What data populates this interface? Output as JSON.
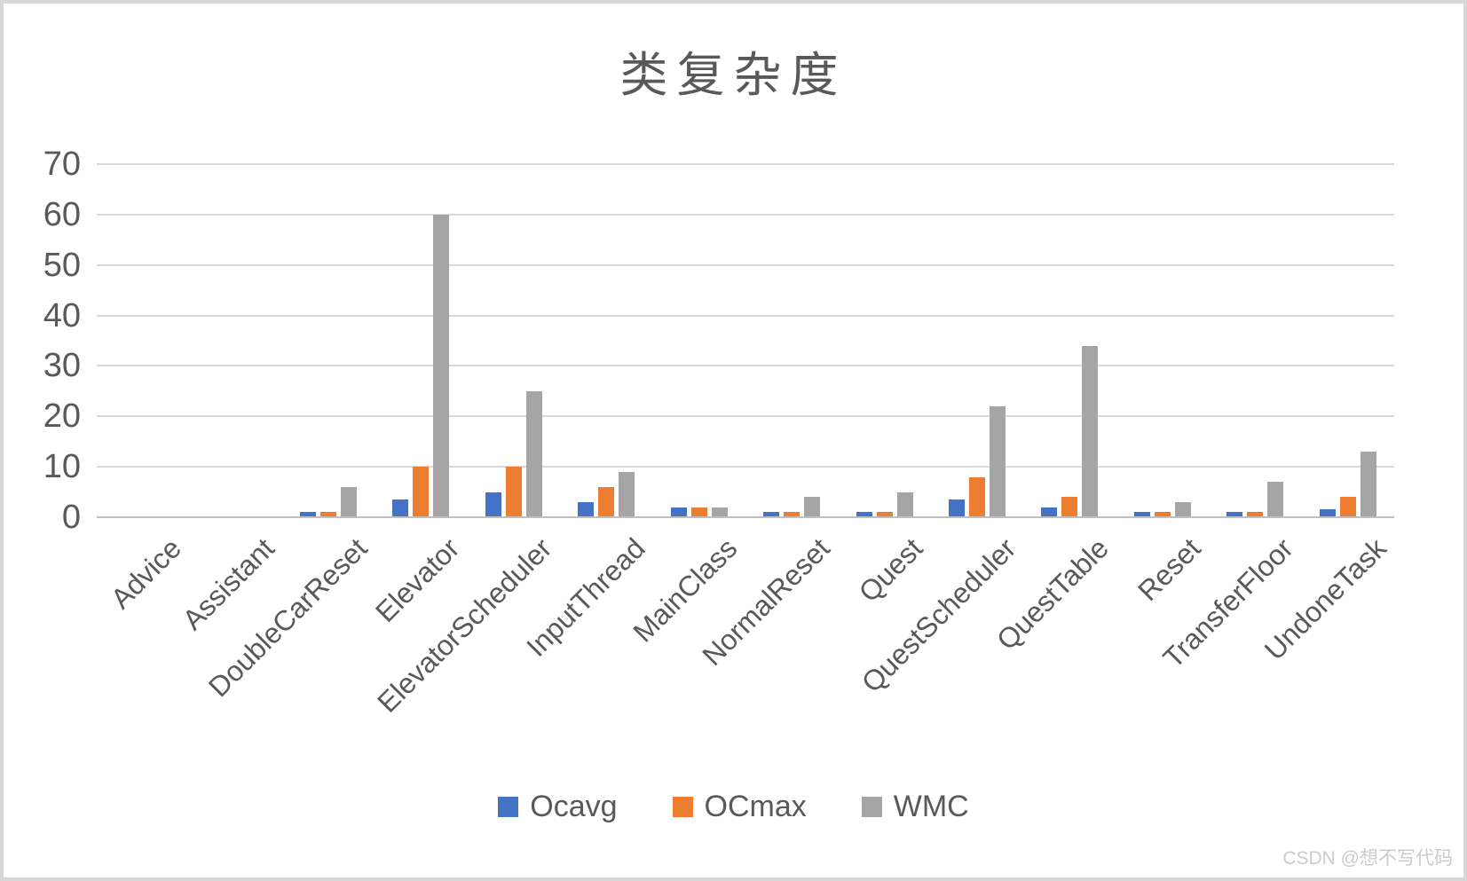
{
  "title": "类复杂度",
  "watermark": "CSDN @想不写代码",
  "colors": {
    "series_blue": "#4472C4",
    "series_orange": "#ED7D31",
    "series_gray": "#A5A5A5",
    "text": "#595959",
    "gridline": "#D9D9D9",
    "axis_line": "#BFBFBF",
    "watermark": "#CBCBCB",
    "frame_border": "#D7D7D7"
  },
  "chart_data": {
    "type": "bar",
    "title": "类复杂度",
    "categories": [
      "Advice",
      "Assistant",
      "DoubleCarReset",
      "Elevator",
      "ElevatorScheduler",
      "InputThread",
      "MainClass",
      "NormalReset",
      "Quest",
      "QuestScheduler",
      "QuestTable",
      "Reset",
      "TransferFloor",
      "UndoneTask"
    ],
    "series": [
      {
        "name": "Ocavg",
        "color": "#4472C4",
        "values": [
          0,
          0,
          1,
          3.5,
          5,
          3,
          2,
          1,
          1,
          3.5,
          2,
          1,
          1,
          1.5
        ]
      },
      {
        "name": "OCmax",
        "color": "#ED7D31",
        "values": [
          0,
          0,
          1,
          10,
          10,
          6,
          2,
          1,
          1,
          8,
          4,
          1,
          1,
          4
        ]
      },
      {
        "name": "WMC",
        "color": "#A5A5A5",
        "values": [
          0,
          0,
          6,
          60,
          25,
          9,
          2,
          4,
          5,
          22,
          34,
          3,
          7,
          13
        ]
      }
    ],
    "xlabel": "",
    "ylabel": "",
    "ylim": [
      0,
      70
    ],
    "yticks": [
      0,
      10,
      20,
      30,
      40,
      50,
      60,
      70
    ],
    "grid": true,
    "legend_position": "bottom",
    "x_tick_rotation_deg": 45
  }
}
